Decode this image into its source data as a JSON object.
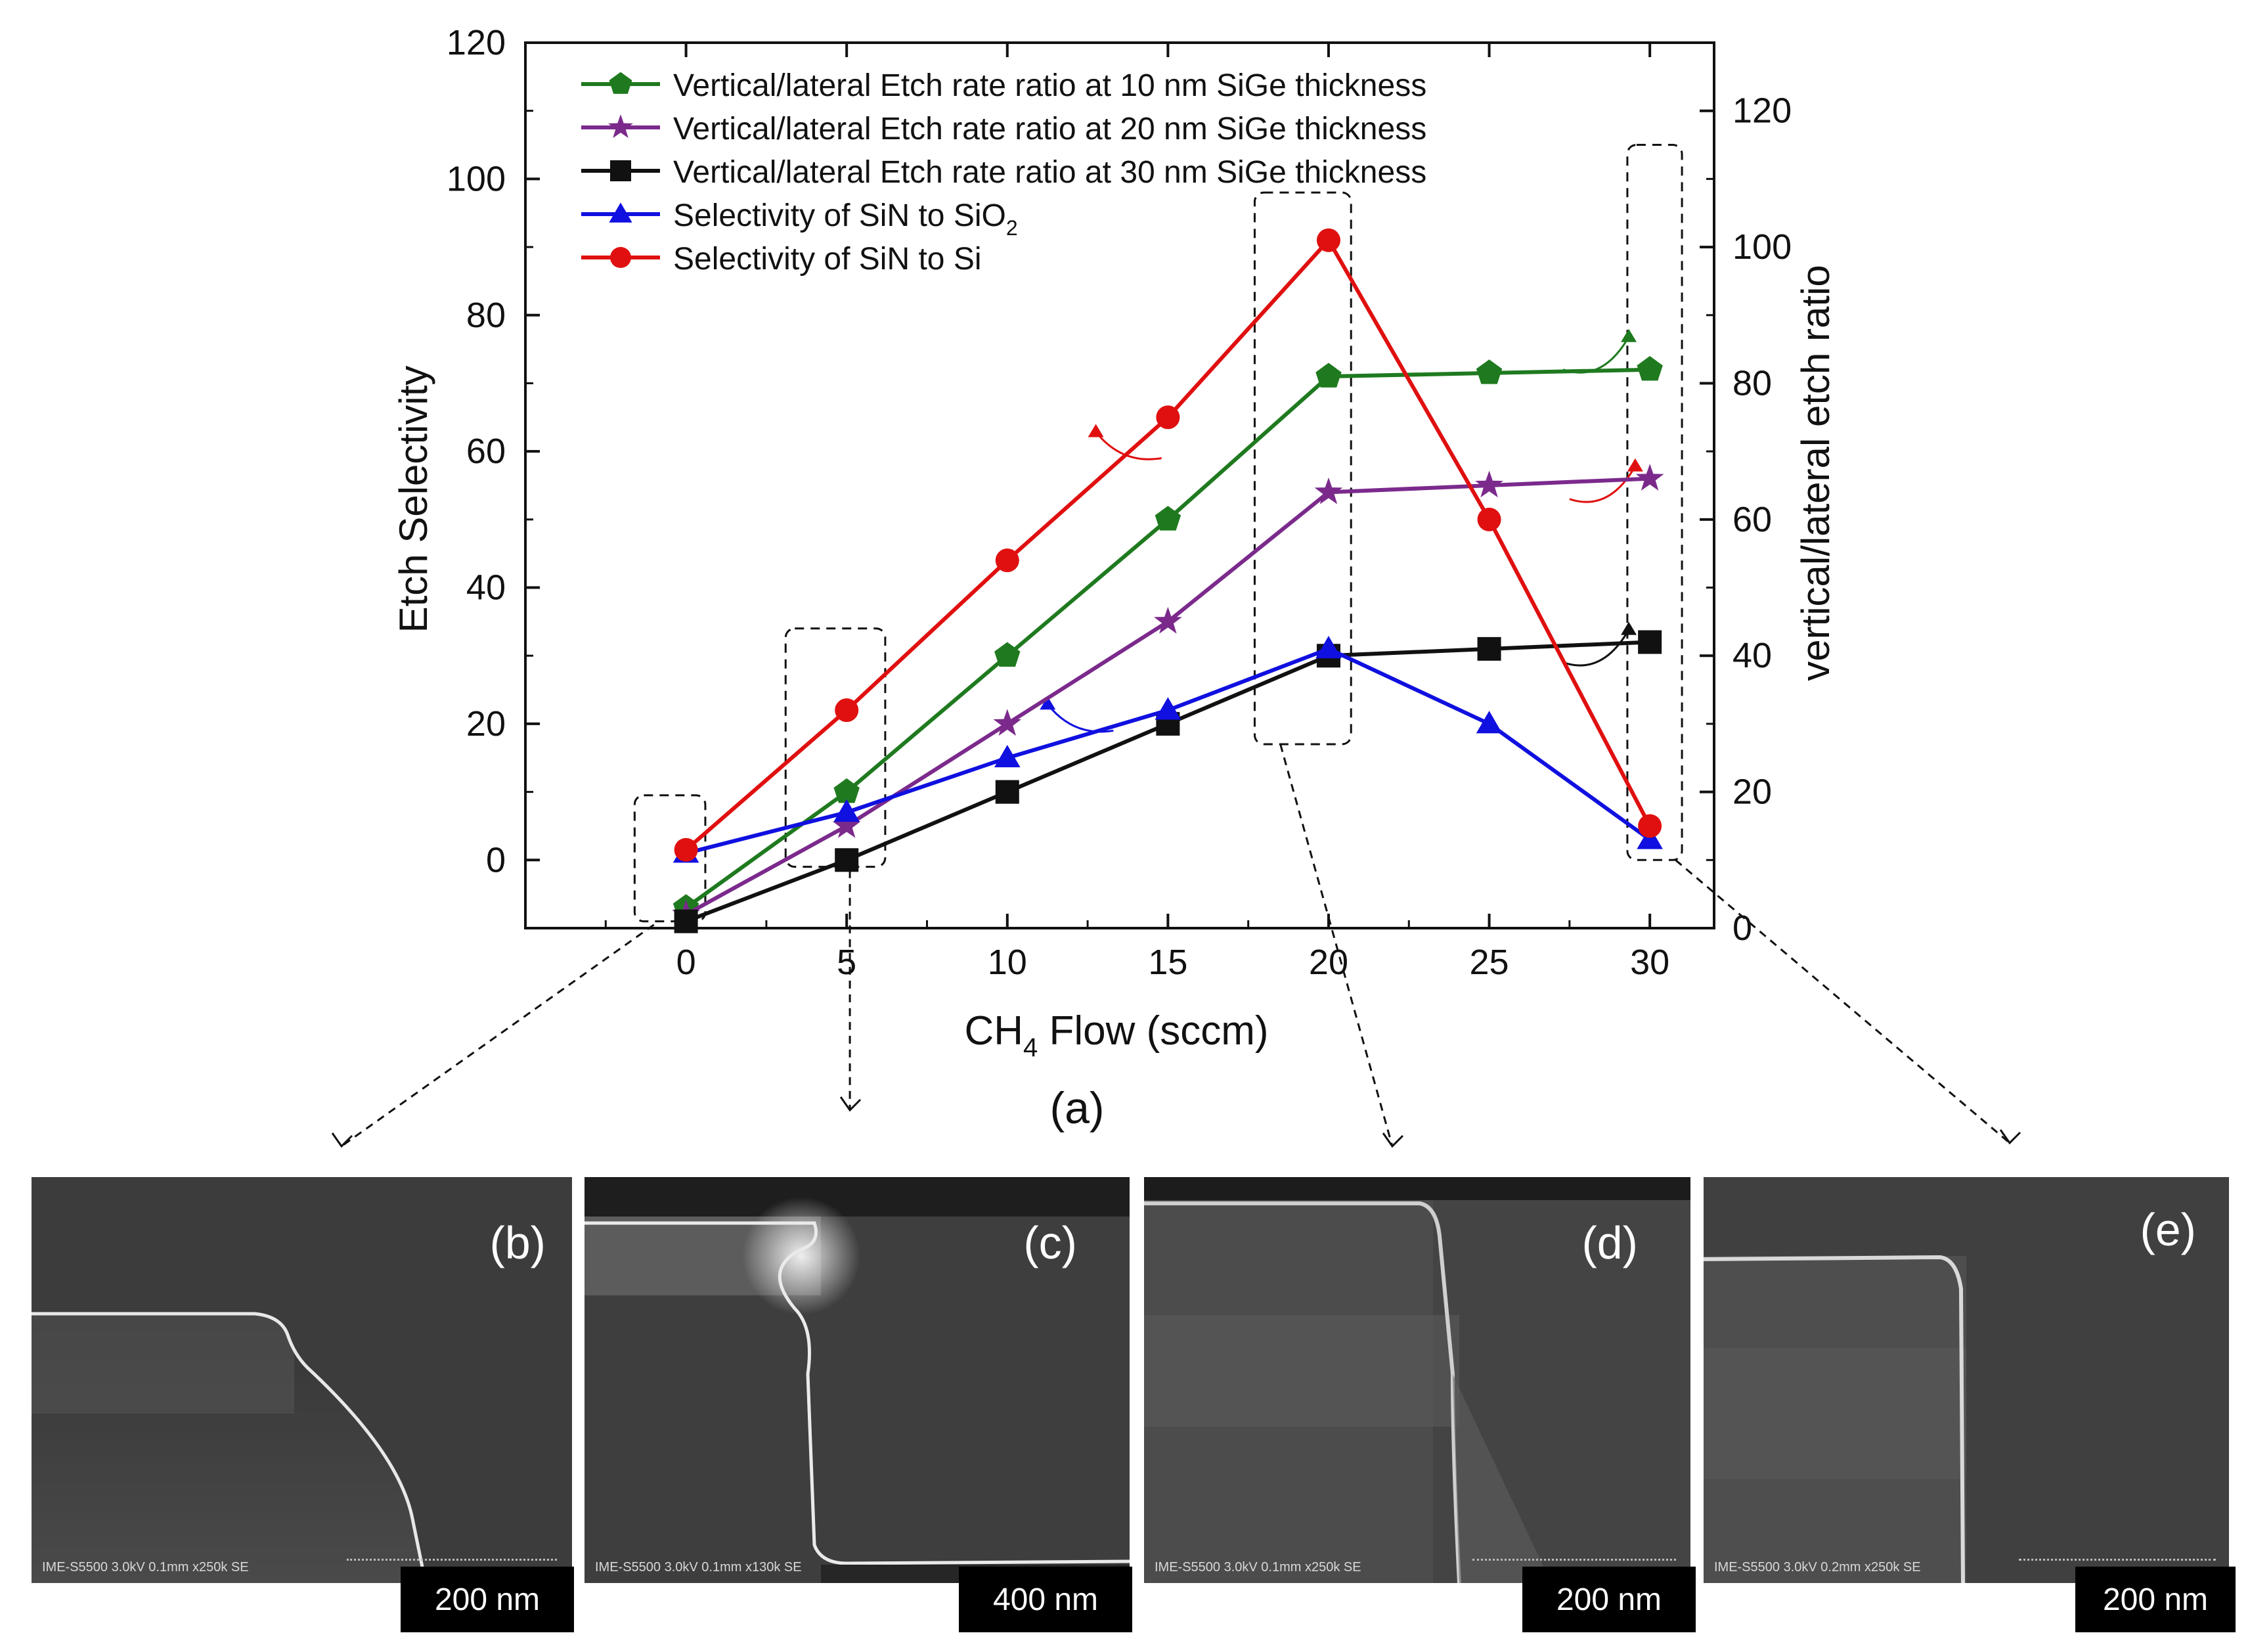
{
  "chart_data": {
    "type": "line",
    "xlabel": "CH",
    "xlabel_sub": "4",
    "xlabel_rest": " Flow (sccm)",
    "ylabel": "Etch Selectivity",
    "y2label": "vertical/lateral etch ratio",
    "panel_label": "(a)",
    "xlim": [
      -5,
      32
    ],
    "ylim": [
      -10,
      120
    ],
    "y2lim": [
      0,
      130
    ],
    "xticks": [
      0,
      5,
      10,
      15,
      20,
      25,
      30
    ],
    "yticks": [
      0,
      20,
      40,
      60,
      80,
      100,
      120
    ],
    "y2ticks": [
      0,
      20,
      40,
      60,
      80,
      100,
      120
    ],
    "x": [
      0,
      5,
      10,
      15,
      20,
      25,
      30
    ],
    "legend_position": "top-left",
    "series": [
      {
        "name": "Vertical/lateral Etch rate ratio at 10 nm SiGe  thickness",
        "axis": "right",
        "color": "#1f7a1f",
        "marker": "pentagon",
        "values": [
          3,
          20,
          40,
          60,
          81,
          81.5,
          82
        ]
      },
      {
        "name": "Vertical/lateral Etch rate ratio at 20 nm SiGe  thickness",
        "axis": "right",
        "color": "#7b2a8c",
        "marker": "star",
        "values": [
          2,
          15,
          30,
          45,
          64,
          65,
          66
        ]
      },
      {
        "name": "Vertical/lateral Etch rate ratio at 30 nm SiGe  thickness",
        "axis": "right",
        "color": "#111111",
        "marker": "square",
        "values": [
          1,
          10,
          20,
          30,
          40,
          41,
          42
        ]
      },
      {
        "name": "Selectivity of SiN to SiO",
        "name_sub": "2",
        "axis": "left",
        "color": "#1010e0",
        "marker": "triangle",
        "values": [
          1,
          7,
          15,
          22,
          31,
          20,
          3
        ]
      },
      {
        "name": "Selectivity of SiN to Si",
        "axis": "left",
        "color": "#e01010",
        "marker": "circle",
        "values": [
          1.5,
          22,
          44,
          65,
          91,
          50,
          5
        ]
      }
    ]
  },
  "sem_panels": [
    {
      "tag": "(b)",
      "scale": "200 nm",
      "info": "IME-S5500 3.0kV 0.1mm x250k SE"
    },
    {
      "tag": "(c)",
      "scale": "400 nm",
      "info": "IME-S5500 3.0kV 0.1mm x130k SE"
    },
    {
      "tag": "(d)",
      "scale": "200 nm",
      "info": "IME-S5500 3.0kV 0.1mm x250k SE"
    },
    {
      "tag": "(e)",
      "scale": "200 nm",
      "info": "IME-S5500 3.0kV 0.2mm x250k SE"
    }
  ]
}
